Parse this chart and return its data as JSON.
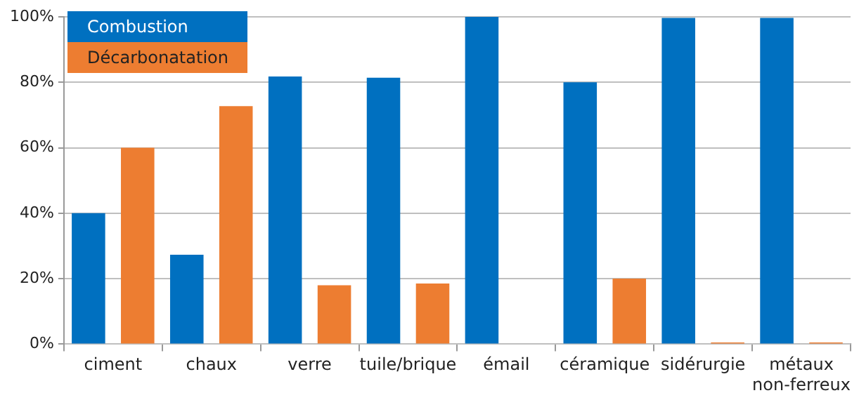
{
  "chart_data": {
    "type": "bar",
    "categories": [
      "ciment",
      "chaux",
      "verre",
      "tuile/brique",
      "émail",
      "céramique",
      "sidérurgie",
      "métaux non-ferreux"
    ],
    "series": [
      {
        "name": "Combustion",
        "color": "#0070c0",
        "values": [
          40,
          27.3,
          81.8,
          81.4,
          100,
          80,
          99.7,
          99.7
        ]
      },
      {
        "name": "Décarbonatation",
        "color": "#ed7d31",
        "values": [
          60,
          72.7,
          18,
          18.5,
          0,
          20,
          0.5,
          0.5
        ]
      }
    ],
    "ylim": [
      0,
      100
    ],
    "yticks": [
      {
        "value": 0,
        "label": "0%"
      },
      {
        "value": 20,
        "label": "20%"
      },
      {
        "value": 40,
        "label": "40%"
      },
      {
        "value": 60,
        "label": "60%"
      },
      {
        "value": 80,
        "label": "80%"
      },
      {
        "value": 100,
        "label": "100%"
      }
    ],
    "grid": "y",
    "legend": "top left"
  }
}
